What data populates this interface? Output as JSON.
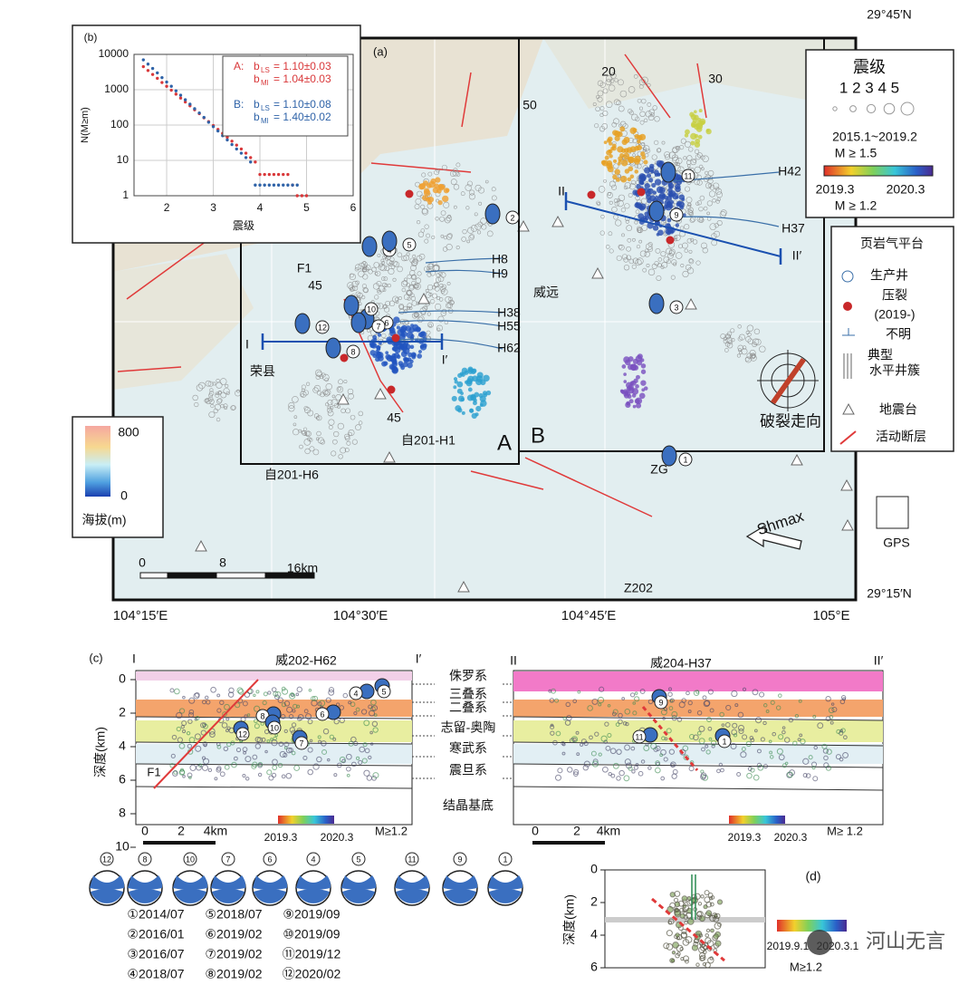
{
  "panel_a": {
    "label": "(a)",
    "lat_labels": [
      "29°45′N",
      "29°15′N"
    ],
    "lon_labels": [
      "104°15′E",
      "104°30′E",
      "104°45′E",
      "105°E"
    ],
    "magnitude_legend": {
      "title": "震级",
      "scale": "1 2 3 4 5",
      "period": "2015.1~2019.2",
      "threshold": "M ≥ 1.5",
      "colorbar_start": "2019.3",
      "colorbar_end": "2020.3",
      "threshold2": "M ≥ 1.2"
    },
    "platform_legend": [
      "页岩气平台",
      "生产井",
      "压裂",
      "(2019-)",
      "不明",
      "典型",
      "水平井簇",
      "地震台",
      "活动断层"
    ],
    "elevation_legend": {
      "max": "800",
      "min": "0",
      "title": "海拔(m)"
    },
    "labels": [
      "20",
      "30",
      "50",
      "H42",
      "H37",
      "II",
      "II′",
      "H8",
      "H9",
      "H38",
      "H55",
      "H62",
      "I",
      "I′",
      "F1",
      "45",
      "45",
      "威远",
      "荣县",
      "自201-H1",
      "自201-H6",
      "A",
      "B",
      "ZG",
      "破裂走向",
      "Z202"
    ],
    "events": [
      "1",
      "2",
      "3",
      "4",
      "5",
      "6",
      "7",
      "8",
      "9",
      "10",
      "11",
      "12"
    ],
    "scale_bar": [
      "0",
      "8",
      "16km"
    ],
    "gps": "GPS",
    "shmax": "Shmax"
  },
  "chart_data": {
    "type": "scatter",
    "label": "(b)",
    "xlabel": "震级",
    "ylabel": "N(M≥m)",
    "log_y": true,
    "x": [
      1.5,
      1.6,
      1.7,
      1.8,
      1.9,
      2.0,
      2.1,
      2.2,
      2.3,
      2.4,
      2.5,
      2.6,
      2.7,
      2.8,
      2.9,
      3.0,
      3.1,
      3.2,
      3.3,
      3.4,
      3.5,
      3.6,
      3.7,
      3.8,
      3.9,
      4.0,
      4.1,
      4.2,
      4.3,
      4.4,
      4.5,
      4.6,
      4.7,
      4.8,
      4.9,
      5.0
    ],
    "xlim": [
      1.3,
      6
    ],
    "xticks": [
      2,
      3,
      4,
      5,
      6
    ],
    "ylim": [
      1,
      10000
    ],
    "yticks": [
      1,
      10,
      100,
      1000,
      10000
    ],
    "grid": true,
    "b_symbol": "b",
    "series": [
      {
        "name": "A:",
        "color": "#d9383a",
        "fits": [
          {
            "sub": "LS",
            "text": "= 1.10±0.03"
          },
          {
            "sub": "Ml",
            "text": "= 1.04±0.03"
          }
        ],
        "values": [
          4500,
          3500,
          2700,
          2100,
          1600,
          1250,
          970,
          750,
          580,
          450,
          350,
          270,
          210,
          160,
          125,
          97,
          75,
          58,
          45,
          35,
          27,
          21,
          16,
          12,
          9,
          4,
          4,
          4,
          4,
          4,
          4,
          4,
          2,
          1,
          1,
          1
        ]
      },
      {
        "name": "B:",
        "color": "#2f63a8",
        "fits": [
          {
            "sub": "LS",
            "text": "= 1.10±0.08"
          },
          {
            "sub": "Ml",
            "text": "= 1.40±0.02"
          }
        ],
        "values": [
          7000,
          5300,
          4000,
          3000,
          2200,
          1650,
          1250,
          930,
          700,
          520,
          390,
          290,
          220,
          165,
          120,
          90,
          68,
          50,
          38,
          28,
          21,
          16,
          12,
          9,
          2,
          2,
          2,
          2,
          2,
          2,
          2,
          2,
          2,
          2,
          null,
          null
        ]
      }
    ]
  },
  "panel_c": {
    "label": "(c)",
    "left": {
      "ends": [
        "I",
        "I′"
      ],
      "well": "威202-H62",
      "events": [
        "12",
        "8",
        "10",
        "6",
        "7",
        "4",
        "5"
      ]
    },
    "right": {
      "ends": [
        "II",
        "II′"
      ],
      "well": "威204-H37",
      "events": [
        "9",
        "11",
        "1"
      ]
    },
    "formations": [
      "侏罗系",
      "三叠系",
      "二叠系",
      "志留-奥陶",
      "寒武系",
      "震旦系",
      "结晶基底"
    ],
    "fault": "F1",
    "yticks": [
      0,
      2,
      4,
      6,
      8,
      10
    ],
    "ylabel": "深度(km)",
    "scale_bar": [
      "0",
      "2",
      "4km"
    ],
    "colorbar": [
      "2019.3",
      "2020.3"
    ],
    "threshold": "M≥1.2",
    "threshold_right": "M≥ 1.2"
  },
  "mechanisms": {
    "order": [
      "12",
      "8",
      "10",
      "7",
      "6",
      "4",
      "5",
      "11",
      "9",
      "1"
    ],
    "dates": [
      "①2014/07",
      "②2016/01",
      "③2016/07",
      "④2018/07",
      "⑤2018/07",
      "⑥2019/02",
      "⑦2019/02",
      "⑧2019/02",
      "⑨2019/09",
      "⑩2019/09",
      "⑪2019/12",
      "⑫2020/02"
    ]
  },
  "panel_d": {
    "label": "(d)",
    "yticks": [
      0,
      2,
      4,
      6
    ],
    "ylabel": "深度(km)",
    "colorbar": [
      "2019.9.1",
      "2020.3.1"
    ],
    "threshold": "M≥1.2"
  },
  "watermark": "河山无言"
}
